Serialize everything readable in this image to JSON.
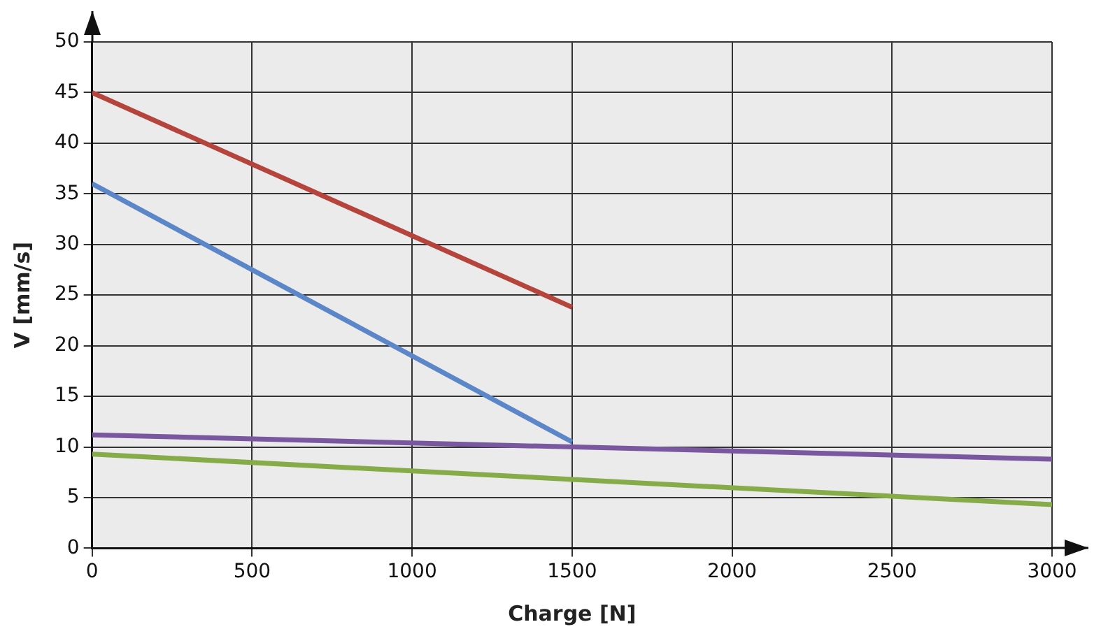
{
  "chart_data": {
    "type": "line",
    "xlabel": "Charge [N]",
    "ylabel": "V [mm/s]",
    "xlim": [
      0,
      3000
    ],
    "xticks": [
      0,
      500,
      1000,
      1500,
      2000,
      2500,
      3000
    ],
    "ylim": [
      0,
      50
    ],
    "yticks": [
      0,
      5,
      10,
      15,
      20,
      25,
      30,
      35,
      40,
      45,
      50
    ],
    "grid": true,
    "legend": false,
    "marker": "none",
    "line_style": "solid",
    "series": [
      {
        "color": "#b5443c",
        "x": [
          0,
          1500
        ],
        "values": [
          45,
          23.8
        ]
      },
      {
        "color": "#5b87c9",
        "x": [
          0,
          1500
        ],
        "values": [
          36,
          10.5
        ]
      },
      {
        "color": "#7a58a0",
        "x": [
          0,
          3000
        ],
        "values": [
          11.2,
          8.8
        ]
      },
      {
        "color": "#86ac4a",
        "x": [
          0,
          3000
        ],
        "values": [
          9.3,
          4.3
        ]
      }
    ]
  }
}
